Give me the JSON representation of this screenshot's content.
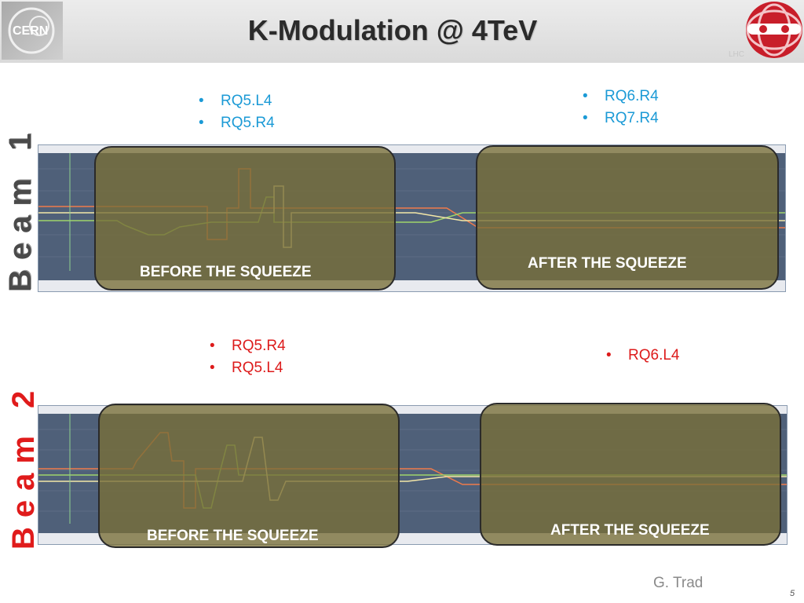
{
  "slide": {
    "title": "K-Modulation @ 4TeV",
    "logos": {
      "left": "CERN",
      "right": "LHC"
    },
    "author": "G. Trad",
    "page_number": "5"
  },
  "beam1": {
    "label": "Beam 1",
    "bullets_left": [
      "RQ5.L4",
      "RQ5.R4"
    ],
    "bullets_right": [
      "RQ6.R4",
      "RQ7.R4"
    ],
    "before_label": "BEFORE THE SQUEEZE",
    "after_label": "AFTER THE SQUEEZE"
  },
  "beam2": {
    "label": "Beam 2",
    "bullets_left": [
      "RQ5.R4",
      "RQ5.L4"
    ],
    "bullets_right": [
      "RQ6.L4"
    ],
    "before_label": "BEFORE THE SQUEEZE",
    "after_label": "AFTER THE SQUEEZE"
  },
  "colors": {
    "blue_text": "#1b9ad6",
    "red_text": "#dd1b1b",
    "chart_bg": "#4f6079",
    "overlay": "#786e37"
  }
}
